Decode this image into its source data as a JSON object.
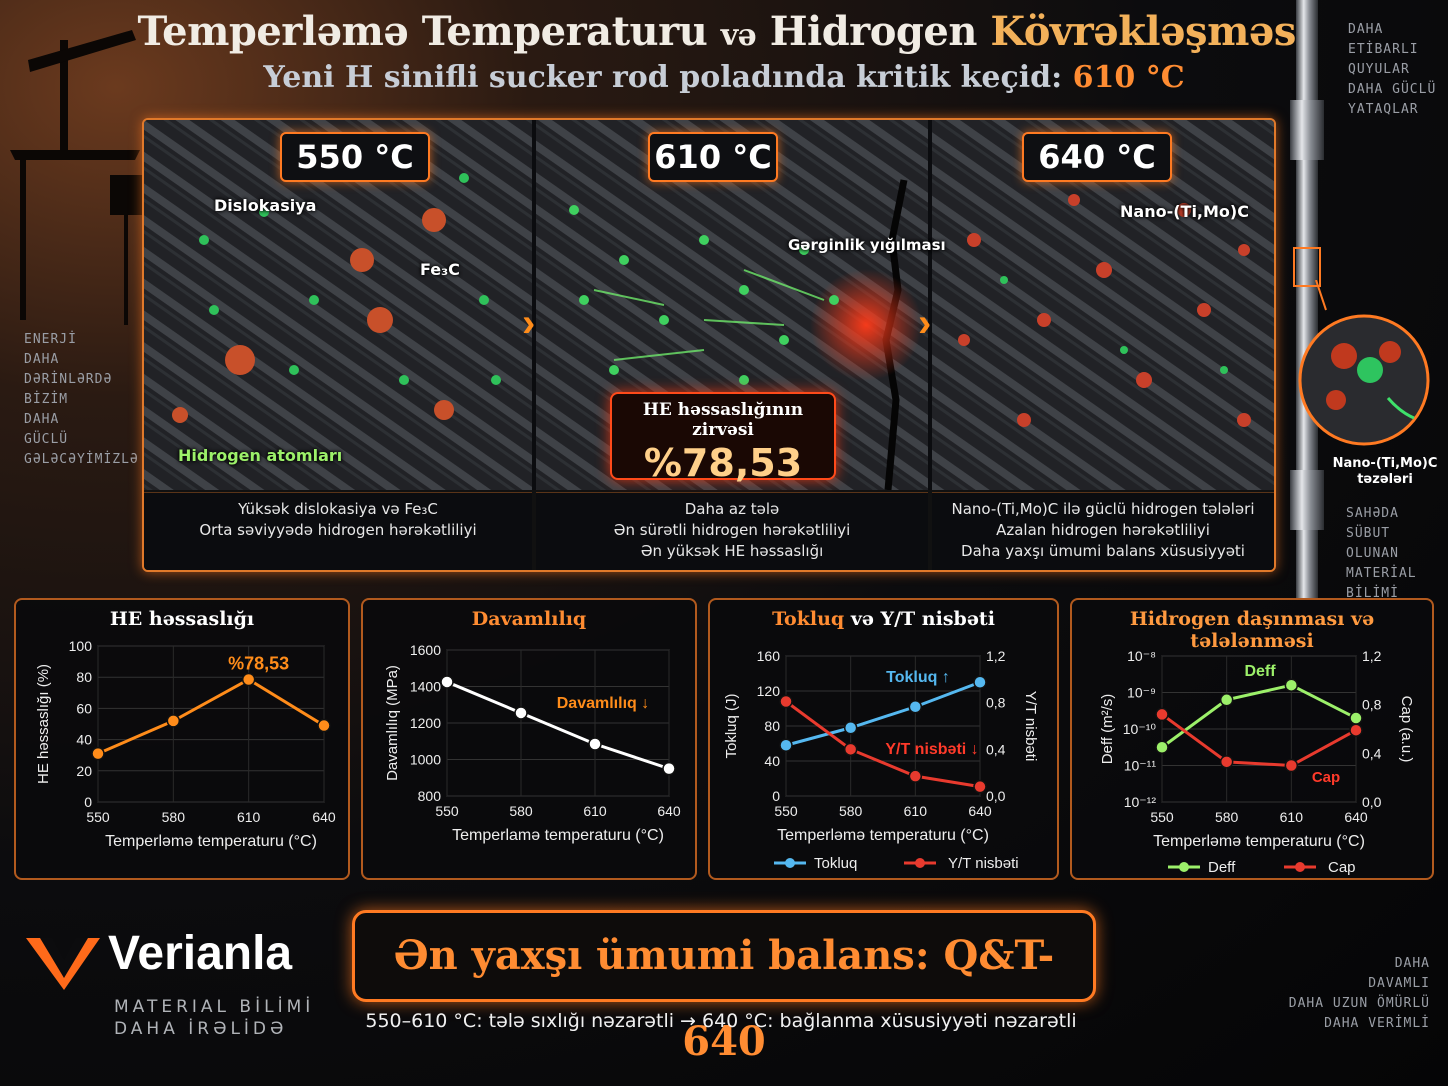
{
  "header": {
    "title_parts": [
      "Temperləmə Temperaturu",
      "və",
      "Hidrogen",
      "Kövrəkləşməsi"
    ],
    "subtitle": "Yeni H sinifli sucker rod poladında kritik keçid:",
    "subtitle_highlight": "610 °C"
  },
  "side_left": [
    "ENERJİ",
    "DAHA",
    "DƏRİNLƏRDƏ",
    "BİZİM",
    "DAHA",
    "GÜCLÜ",
    "GƏLƏCƏYİMİZLƏ"
  ],
  "side_right_top": [
    "DAHA",
    "ETİBARLI",
    "QUYULAR",
    "DAHA GÜCLÜ",
    "YATAQLAR"
  ],
  "side_right_mid": [
    "SAHƏDA",
    "SÜBUT OLUNAN",
    "MATERİAL",
    "BİLİMİ"
  ],
  "side_right_bottom": [
    "DAHA",
    "DAVAMLI",
    "DAHA UZUN ÖMÜRLÜ",
    "DAHA VERİMLİ"
  ],
  "rod_callout": [
    "Nano-(Ti,Mo)C",
    "təzələri"
  ],
  "panels": [
    {
      "temp": "550 °C",
      "labels": {
        "dislocation": "Dislokasiya",
        "fe3c": "Fe₃C",
        "hydrogen": "Hidrogen atomları"
      },
      "caption": [
        "Yüksək dislokasiya və Fe₃C",
        "Orta səviyyədə hidrogen hərəkətliliyi"
      ]
    },
    {
      "temp": "610 °C",
      "labels": {
        "stress": "Gərginlik yığılması",
        "peak_title": "HE həssaslığının zirvəsi",
        "peak_value": "%78,53"
      },
      "caption": [
        "Daha az tələ",
        "Ən sürətli hidrogen hərəkətliliyi",
        "Ən yüksək HE həssaslığı"
      ]
    },
    {
      "temp": "640 °C",
      "labels": {
        "nano": "Nano-(Ti,Mo)C"
      },
      "caption": [
        "Nano-(Ti,Mo)C ilə güclü hidrogen tələləri",
        "Azalan hidrogen hərəkətliliyi",
        "Daha yaxşı ümumi balans xüsusiyyəti"
      ]
    }
  ],
  "chart_data": [
    {
      "type": "line",
      "title": "HE həssaslığı",
      "xlabel": "Temperləmə temperaturu (°C)",
      "ylabel": "HE həssaslığı (%)",
      "x": [
        550,
        580,
        610,
        640
      ],
      "ylim": [
        0,
        100
      ],
      "yticks": [
        "0",
        "20",
        "40",
        "60",
        "80",
        "100"
      ],
      "series": [
        {
          "values": [
            31,
            52,
            78.53,
            49
          ],
          "color": "#ff8c1a"
        }
      ],
      "annotation": "%78,53"
    },
    {
      "type": "line",
      "title": "Davamlılıq",
      "xlabel": "Temperlamə temperaturu (°C)",
      "ylabel": "Davamlılıq (MPa)",
      "x": [
        550,
        580,
        610,
        640
      ],
      "ylim": [
        800,
        1600
      ],
      "yticks": [
        "800",
        "1000",
        "1200",
        "1400",
        "1600"
      ],
      "series": [
        {
          "values": [
            1425,
            1255,
            1085,
            950
          ],
          "color": "#ffffff"
        }
      ],
      "annotation": "Davamlılıq ↓"
    },
    {
      "type": "line",
      "title_parts": [
        "Tokluq",
        "və Y/T nisbəti"
      ],
      "xlabel": "Temperləmə temperaturu (°C)",
      "ylabel": "Tokluq (J)",
      "ylabel_right": "Y/T nisbəti",
      "x": [
        550,
        580,
        610,
        640
      ],
      "ylim": [
        0,
        160
      ],
      "yticks": [
        "0",
        "40",
        "80",
        "120",
        "160"
      ],
      "ylim_right": [
        0,
        1.2
      ],
      "yticks_right": [
        "0,0",
        "0,4",
        "0,8",
        "1,2"
      ],
      "series": [
        {
          "name": "Tokluq",
          "values": [
            58,
            78,
            102,
            130
          ],
          "axis": "left",
          "color": "#55b8f0"
        },
        {
          "name": "Y/T nisbəti",
          "values": [
            0.81,
            0.4,
            0.17,
            0.08
          ],
          "axis": "right",
          "color": "#e83a2e"
        }
      ],
      "annotations": [
        "Tokluq ↑",
        "Y/T nisbəti ↓"
      ]
    },
    {
      "type": "line",
      "title": "Hidrogen daşınması və tələlənməsi",
      "xlabel": "Temperləmə temperaturu (°C)",
      "ylabel": "Deff (m²/s)",
      "ylabel_right": "Cap (a.u.)",
      "x": [
        550,
        580,
        610,
        640
      ],
      "yticks": [
        "10⁻¹²",
        "10⁻¹¹",
        "10⁻¹⁰",
        "10⁻⁹",
        "10⁻⁸"
      ],
      "ylim_right": [
        0,
        1.2
      ],
      "yticks_right": [
        "0,0",
        "0,4",
        "0,8",
        "1,2"
      ],
      "series": [
        {
          "name": "Deff",
          "log10_values": [
            -10.5,
            -9.2,
            -8.8,
            -9.7
          ],
          "axis": "left",
          "color": "#9cf06a"
        },
        {
          "name": "Cap",
          "values": [
            0.72,
            0.33,
            0.3,
            0.59
          ],
          "axis": "right",
          "color": "#e83a2e"
        }
      ],
      "annotations": [
        "Deff",
        "Cap"
      ]
    }
  ],
  "footer": {
    "brand": "Verianla",
    "brand_sub": [
      "MATERIAL BİLİMİ",
      "DAHA İRƏLİDƏ"
    ],
    "banner": "Ən yaxşı ümumi balans: Q&T-640",
    "banner_sub": "550–610 °C: tələ sıxlığı nəzarətli  →  640 °C: bağlanma xüsusiyyəti nəzarətli"
  }
}
